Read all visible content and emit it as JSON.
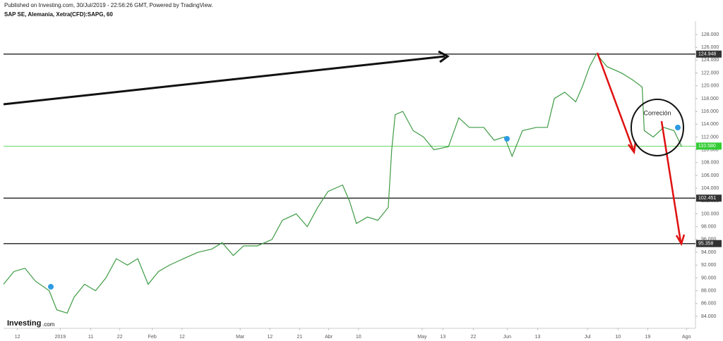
{
  "header": {
    "published": "Published on Investing.com, 30/Jul/2019 - 22:56:26 GMT, Powered by TradingView.",
    "symbol": "SAP SE, Alemania, Xetra(CFD):SAPG, 60",
    "logo": "Investing",
    "logo_suffix": ".com"
  },
  "chart_data": {
    "type": "line",
    "color": "#3f9b45",
    "x": [
      0,
      1.5,
      3.1,
      4.6,
      6.6,
      7.7,
      9.2,
      10.2,
      11.7,
      13.3,
      14.8,
      16.3,
      17.9,
      19.4,
      20.9,
      22.4,
      24,
      26,
      28.1,
      30.1,
      31.6,
      33.2,
      34.7,
      36.7,
      38.8,
      40.3,
      42.3,
      43.9,
      45.4,
      46.9,
      49,
      50,
      51,
      52.6,
      54.1,
      55.6,
      56.1,
      56.6,
      57.7,
      59.2,
      60.7,
      62.2,
      64.3,
      65.8,
      67.3,
      69.4,
      70.9,
      72.4,
      73.5,
      75,
      77,
      78.6,
      79.6,
      81.1,
      82.7,
      83.7,
      84.7,
      85.7,
      87.2,
      89.3,
      90.8,
      92.3,
      92.6,
      93.9,
      95.4,
      96.9,
      98
    ],
    "values": [
      89,
      91,
      91.5,
      89.5,
      88,
      85,
      84.5,
      87,
      89,
      88,
      90,
      93,
      92,
      93,
      89,
      91,
      92,
      93,
      94,
      94.5,
      95.5,
      93.5,
      95,
      95,
      96,
      99,
      100,
      98,
      101,
      103.5,
      104.5,
      102,
      98.5,
      99.5,
      99,
      101,
      110,
      115.5,
      116,
      113,
      112,
      110,
      110.5,
      115,
      113.5,
      113.5,
      111.5,
      112,
      109,
      113,
      113.5,
      113.5,
      118,
      119,
      117.5,
      120,
      123,
      125,
      123,
      122,
      121,
      119.8,
      113,
      112,
      113.5,
      113,
      110.5
    ],
    "xlim": [
      0,
      100
    ],
    "xticks": [
      {
        "value": 2.0,
        "label": "12"
      },
      {
        "value": 8.2,
        "label": "2019"
      },
      {
        "value": 12.6,
        "label": "11"
      },
      {
        "value": 16.8,
        "label": "22"
      },
      {
        "value": 21.5,
        "label": "Feb"
      },
      {
        "value": 25.8,
        "label": "12"
      },
      {
        "value": 34.2,
        "label": "Mar"
      },
      {
        "value": 38.5,
        "label": "12"
      },
      {
        "value": 42.8,
        "label": "21"
      },
      {
        "value": 47.0,
        "label": "Abr"
      },
      {
        "value": 51.3,
        "label": "10"
      },
      {
        "value": 60.5,
        "label": "May"
      },
      {
        "value": 63.5,
        "label": "13"
      },
      {
        "value": 67.9,
        "label": "22"
      },
      {
        "value": 72.8,
        "label": "Jun"
      },
      {
        "value": 77.2,
        "label": "13"
      },
      {
        "value": 84.4,
        "label": "Jul"
      },
      {
        "value": 88.8,
        "label": "10"
      },
      {
        "value": 93.1,
        "label": "19"
      },
      {
        "value": 98.7,
        "label": "Ago"
      }
    ],
    "ylim": [
      82.5,
      129.5
    ],
    "yticks": [
      {
        "value": 84,
        "label": "84.000"
      },
      {
        "value": 86,
        "label": "86.000"
      },
      {
        "value": 88,
        "label": "88.000"
      },
      {
        "value": 90,
        "label": "90.000"
      },
      {
        "value": 92,
        "label": "92.000"
      },
      {
        "value": 94,
        "label": "94.000"
      },
      {
        "value": 96,
        "label": "96.000"
      },
      {
        "value": 98,
        "label": "98.000"
      },
      {
        "value": 100,
        "label": "100.000"
      },
      {
        "value": 102,
        "label": "102.000"
      },
      {
        "value": 104,
        "label": "104.000"
      },
      {
        "value": 106,
        "label": "106.000"
      },
      {
        "value": 108,
        "label": "108.000"
      },
      {
        "value": 110,
        "label": "110.000"
      },
      {
        "value": 112,
        "label": "112.000"
      },
      {
        "value": 114,
        "label": "114.000"
      },
      {
        "value": 116,
        "label": "116.000"
      },
      {
        "value": 118,
        "label": "118.000"
      },
      {
        "value": 120,
        "label": "120.000"
      },
      {
        "value": 122,
        "label": "122.000"
      },
      {
        "value": 124,
        "label": "124.000"
      },
      {
        "value": 126,
        "label": "126.000"
      },
      {
        "value": 128,
        "label": "128.000"
      }
    ],
    "levels": [
      {
        "value": 124.948,
        "label": "124.948",
        "color": "#333333"
      },
      {
        "value": 110.58,
        "label": "110.580",
        "color": "#33cc33"
      },
      {
        "value": 102.451,
        "label": "102.451",
        "color": "#333333"
      },
      {
        "value": 95.358,
        "label": "95.358",
        "color": "#333333"
      }
    ],
    "annotations": [
      "Correción"
    ]
  }
}
